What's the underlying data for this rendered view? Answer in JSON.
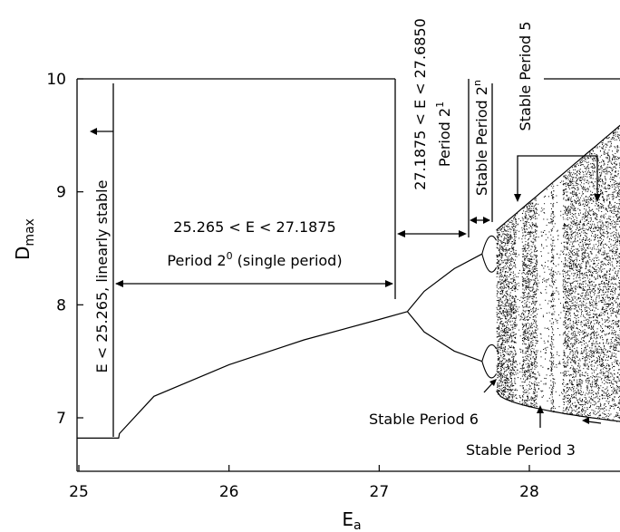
{
  "chart_data": {
    "type": "scatter",
    "title": "",
    "xlabel": "E",
    "xlabel_sub": "a",
    "ylabel": "D",
    "ylabel_sub": "max",
    "xlim": [
      24.95,
      28.65
    ],
    "ylim": [
      6.5,
      10.0
    ],
    "x_ticks": [
      25,
      26,
      27,
      28
    ],
    "x_tick_labels": [
      "25",
      "26",
      "27",
      "28"
    ],
    "y_ticks": [
      7,
      8,
      9,
      10
    ],
    "y_tick_labels": [
      "7",
      "8",
      "9",
      "10"
    ],
    "grid": false,
    "legend": "none",
    "color": "#000000",
    "regime_boundaries": {
      "linear_stability_limit": 25.265,
      "period_doubling_onset": 27.1875,
      "period_four_onset": 27.685
    },
    "equilibrium_branch": {
      "x": [
        24.95,
        25.265,
        25.27,
        25.5,
        26.0,
        26.5,
        27.0,
        27.1875
      ],
      "y": [
        6.82,
        6.82,
        6.86,
        7.19,
        7.47,
        7.69,
        7.87,
        7.94
      ]
    },
    "period_two_branches": [
      {
        "x": [
          27.1875,
          27.3,
          27.5,
          27.685
        ],
        "y": [
          7.94,
          8.12,
          8.32,
          8.45
        ]
      },
      {
        "x": [
          27.1875,
          27.3,
          27.5,
          27.685
        ],
        "y": [
          7.94,
          7.76,
          7.59,
          7.5
        ]
      }
    ],
    "chaotic_envelope": {
      "x_start": 27.78,
      "x_end": 28.65,
      "upper": [
        8.66,
        9.64
      ],
      "lower": [
        7.24,
        6.96
      ]
    },
    "periodic_windows": [
      {
        "label": "Stable Period 5",
        "x": [
          28.05,
          28.14
        ]
      },
      {
        "label": "Stable Period 3",
        "x": [
          28.16,
          28.22
        ]
      },
      {
        "label": "Stable Period 6",
        "x": [
          27.91,
          27.95
        ]
      }
    ],
    "annotations": {
      "linear": "E < 25.265, linearly stable",
      "single_range": "25.265 < E < 27.1875",
      "single_period": "Period 2",
      "single_period_exp": "0",
      "single_period_tail": " (single period)",
      "doubling_range": "27.1875 < E < 27.6850",
      "doubling_period": "Period 2",
      "doubling_period_exp": "1",
      "stable_2n": "Stable Period 2",
      "stable_2n_exp": "n",
      "stable_5": "Stable Period 5",
      "stable_6": "Stable Period 6",
      "stable_3": "Stable Period 3"
    }
  }
}
